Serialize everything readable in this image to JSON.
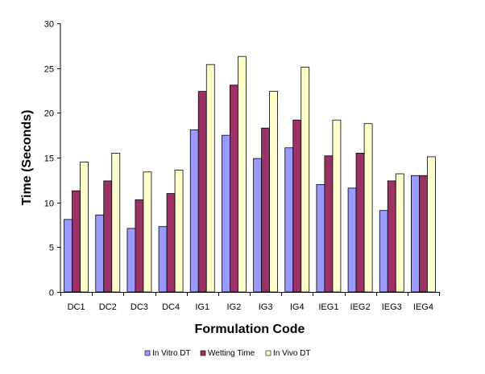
{
  "chart_data": {
    "type": "bar",
    "title": "",
    "xlabel": "Formulation Code",
    "ylabel": "Time (Seconds)",
    "ylim": [
      0,
      30
    ],
    "yticks": [
      0,
      5,
      10,
      15,
      20,
      25,
      30
    ],
    "grid": false,
    "legend_position": "bottom",
    "categories": [
      "DC1",
      "DC2",
      "DC3",
      "DC4",
      "IG1",
      "IG2",
      "IG3",
      "IG4",
      "IEG1",
      "IEG2",
      "IEG3",
      "IEG4"
    ],
    "series": [
      {
        "name": "In Vitro DT",
        "color": "#9999ff",
        "values": [
          8.1,
          8.6,
          7.1,
          7.3,
          18.1,
          17.5,
          14.9,
          16.1,
          12.0,
          11.6,
          9.1,
          13.0
        ]
      },
      {
        "name": "Wetting Time",
        "color": "#993366",
        "values": [
          11.3,
          12.4,
          10.3,
          11.0,
          22.4,
          23.1,
          18.3,
          19.2,
          15.2,
          15.5,
          12.4,
          13.0
        ]
      },
      {
        "name": "In Vivo DT",
        "color": "#ffffcc",
        "values": [
          14.5,
          15.5,
          13.4,
          13.6,
          25.4,
          26.3,
          22.4,
          25.1,
          19.2,
          18.8,
          13.2,
          15.1
        ]
      }
    ]
  }
}
